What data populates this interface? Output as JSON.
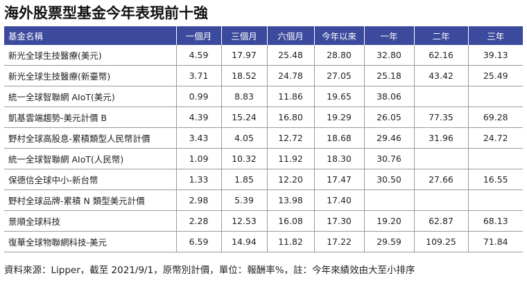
{
  "title": "海外股票型基金今年表現前十強",
  "table": {
    "headers": [
      "基金名稱",
      "一個月",
      "三個月",
      "六個月",
      "今年以來",
      "一年",
      "二年",
      "三年"
    ],
    "rows": [
      {
        "name": "新光全球生技醫療(美元)",
        "m1": "4.59",
        "m3": "17.97",
        "m6": "25.48",
        "ytd": "28.80",
        "y1": "32.80",
        "y2": "62.16",
        "y3": "39.13"
      },
      {
        "name": "新光全球生技醫療(新臺幣)",
        "m1": "3.71",
        "m3": "18.52",
        "m6": "24.78",
        "ytd": "27.05",
        "y1": "25.18",
        "y2": "43.42",
        "y3": "25.49"
      },
      {
        "name": "統一全球智聯網 AIoT(美元)",
        "m1": "0.99",
        "m3": "8.83",
        "m6": "11.86",
        "ytd": "19.65",
        "y1": "38.06",
        "y2": "",
        "y3": ""
      },
      {
        "name": "凱基雲端趨勢-美元計價 B",
        "m1": "4.39",
        "m3": "15.24",
        "m6": "16.80",
        "ytd": "19.29",
        "y1": "26.05",
        "y2": "77.35",
        "y3": "69.28"
      },
      {
        "name": "野村全球高股息-累積類型人民幣計價",
        "m1": "3.43",
        "m3": "4.05",
        "m6": "12.72",
        "ytd": "18.68",
        "y1": "29.46",
        "y2": "31.96",
        "y3": "24.72"
      },
      {
        "name": "統一全球智聯網 AIoT(人民幣)",
        "m1": "1.09",
        "m3": "10.32",
        "m6": "11.92",
        "ytd": "18.30",
        "y1": "30.76",
        "y2": "",
        "y3": ""
      },
      {
        "name": "保德信全球中小-新台幣",
        "m1": "1.33",
        "m3": "1.85",
        "m6": "12.20",
        "ytd": "17.47",
        "y1": "30.50",
        "y2": "27.66",
        "y3": "16.55"
      },
      {
        "name": "野村全球品牌-累積 N 類型美元計價",
        "m1": "2.98",
        "m3": "5.39",
        "m6": "13.98",
        "ytd": "17.40",
        "y1": "",
        "y2": "",
        "y3": ""
      },
      {
        "name": "景順全球科技",
        "m1": "2.28",
        "m3": "12.53",
        "m6": "16.08",
        "ytd": "17.30",
        "y1": "19.20",
        "y2": "62.87",
        "y3": "68.13"
      },
      {
        "name": "復華全球物聯網科技-美元",
        "m1": "6.59",
        "m3": "14.94",
        "m6": "11.82",
        "ytd": "17.22",
        "y1": "29.59",
        "y2": "109.25",
        "y3": "71.84"
      }
    ]
  },
  "footer": "資料來源：Lipper，截至 2021/9/1，原幣別計價，單位：報酬率%，註：今年來績效由大至小排序",
  "colors": {
    "header_bg": "#3b4a9c",
    "header_text": "#ffffff",
    "row_border": "#9a9a9a"
  }
}
